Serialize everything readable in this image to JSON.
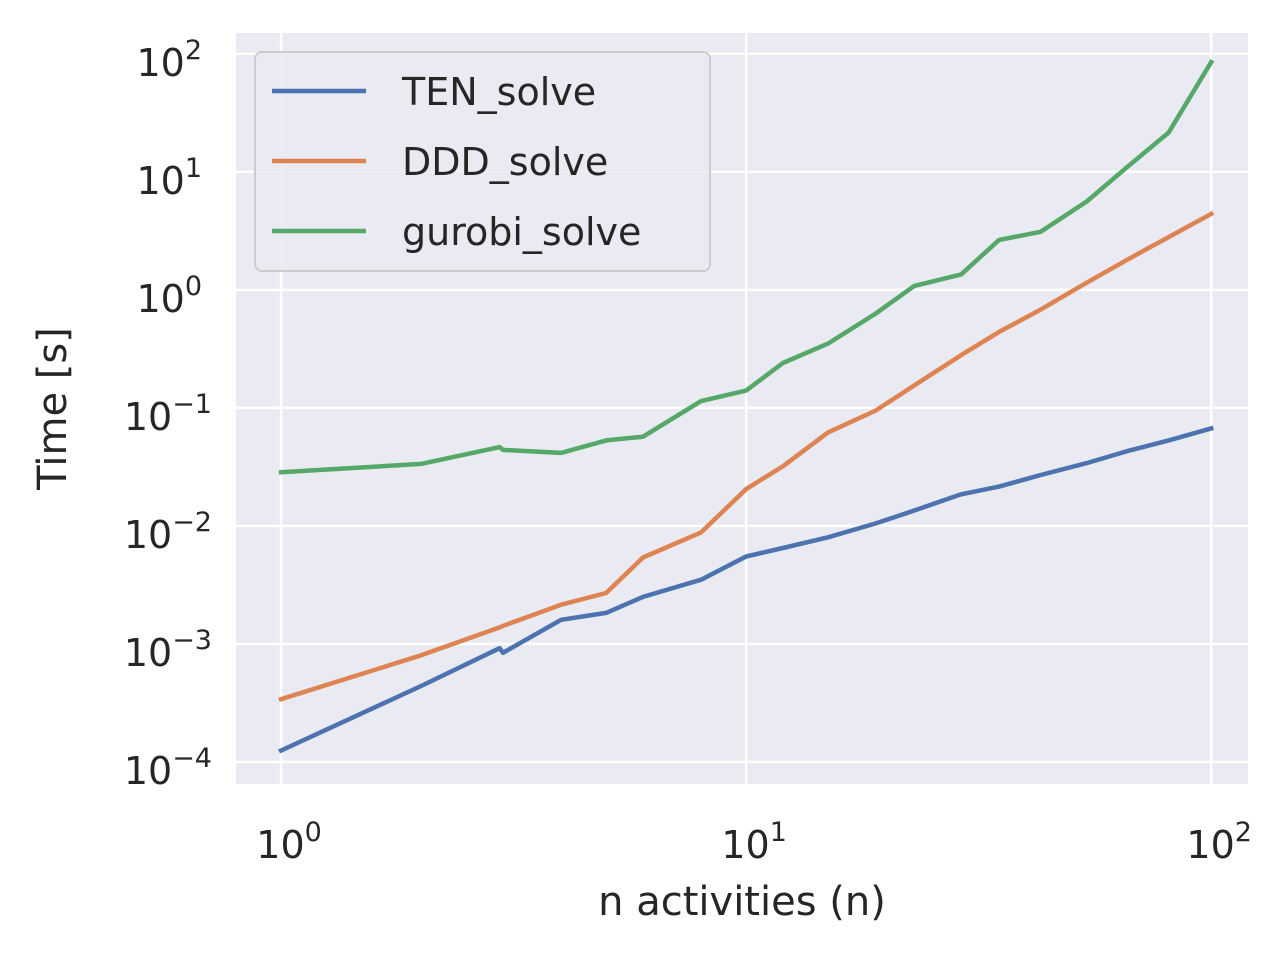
{
  "chart_data": {
    "type": "line",
    "title": "",
    "xlabel": "n activities (n)",
    "ylabel": "Time [s]",
    "xscale": "log",
    "yscale": "log",
    "xlim": [
      0.8,
      120.0
    ],
    "ylim": [
      6.5e-05,
      150.0
    ],
    "xticks": [
      1,
      10,
      100
    ],
    "xtick_labels": [
      {
        "base": "10",
        "exp": "0"
      },
      {
        "base": "10",
        "exp": "1"
      },
      {
        "base": "10",
        "exp": "2"
      }
    ],
    "yticks": [
      0.0001,
      0.001,
      0.01,
      0.1,
      1,
      10,
      100
    ],
    "ytick_labels": [
      {
        "base": "10",
        "exp": "−4"
      },
      {
        "base": "10",
        "exp": "−3"
      },
      {
        "base": "10",
        "exp": "−2"
      },
      {
        "base": "10",
        "exp": "−1"
      },
      {
        "base": "10",
        "exp": "0"
      },
      {
        "base": "10",
        "exp": "1"
      },
      {
        "base": "10",
        "exp": "2"
      }
    ],
    "grid": true,
    "legend_position": "upper-left",
    "series": [
      {
        "name": "TEN_solve",
        "color": "#4c72b0",
        "points": [
          [
            1,
            0.000125
          ],
          [
            2,
            0.00044
          ],
          [
            2.95,
            0.00092
          ],
          [
            3,
            0.00084
          ],
          [
            4,
            0.0016
          ],
          [
            5,
            0.00183
          ],
          [
            6,
            0.0025
          ],
          [
            8,
            0.0035
          ],
          [
            10,
            0.0055
          ],
          [
            12,
            0.0065
          ],
          [
            15,
            0.008
          ],
          [
            19,
            0.0105
          ],
          [
            23,
            0.0135
          ],
          [
            29,
            0.0185
          ],
          [
            35,
            0.0215
          ],
          [
            43,
            0.027
          ],
          [
            54,
            0.034
          ],
          [
            66,
            0.043
          ],
          [
            81,
            0.053
          ],
          [
            100,
            0.067
          ]
        ]
      },
      {
        "name": "DDD_solve",
        "color": "#dd8452",
        "points": [
          [
            1,
            0.00034
          ],
          [
            2,
            0.0008
          ],
          [
            2.95,
            0.00138
          ],
          [
            3,
            0.00142
          ],
          [
            4,
            0.00215
          ],
          [
            5,
            0.0027
          ],
          [
            6,
            0.0054
          ],
          [
            8,
            0.0088
          ],
          [
            10,
            0.0205
          ],
          [
            12,
            0.032
          ],
          [
            15,
            0.062
          ],
          [
            19,
            0.095
          ],
          [
            23,
            0.155
          ],
          [
            29,
            0.28
          ],
          [
            35,
            0.44
          ],
          [
            43,
            0.68
          ],
          [
            54,
            1.15
          ],
          [
            66,
            1.8
          ],
          [
            81,
            2.8
          ],
          [
            100,
            4.4
          ]
        ]
      },
      {
        "name": "gurobi_solve",
        "color": "#55a868",
        "points": [
          [
            1,
            0.0285
          ],
          [
            2,
            0.0335
          ],
          [
            2.95,
            0.0465
          ],
          [
            3,
            0.044
          ],
          [
            4,
            0.0415
          ],
          [
            5,
            0.053
          ],
          [
            6,
            0.057
          ],
          [
            8,
            0.114
          ],
          [
            10,
            0.14
          ],
          [
            12,
            0.24
          ],
          [
            15,
            0.35
          ],
          [
            19,
            0.63
          ],
          [
            23,
            1.08
          ],
          [
            29,
            1.35
          ],
          [
            35,
            2.65
          ],
          [
            43,
            3.1
          ],
          [
            54,
            5.6
          ],
          [
            66,
            11
          ],
          [
            81,
            21.5
          ],
          [
            100,
            85
          ]
        ]
      }
    ]
  }
}
